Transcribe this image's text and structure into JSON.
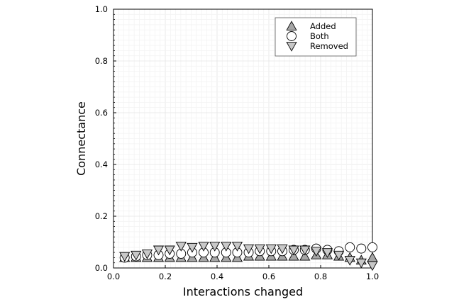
{
  "chart_data": {
    "type": "scatter",
    "xlabel": "Interactions changed",
    "ylabel": "Connectance",
    "xlim": [
      0.0,
      1.0
    ],
    "ylim": [
      0.0,
      1.0
    ],
    "xticks": [
      "0.0",
      "0.2",
      "0.4",
      "0.6",
      "0.8",
      "1.0"
    ],
    "yticks": [
      "0.0",
      "0.2",
      "0.4",
      "0.6",
      "0.8",
      "1.0"
    ],
    "grid": true,
    "legend_position": "top-right",
    "x": [
      0.043,
      0.087,
      0.13,
      0.174,
      0.217,
      0.261,
      0.304,
      0.348,
      0.391,
      0.435,
      0.478,
      0.522,
      0.565,
      0.609,
      0.652,
      0.696,
      0.739,
      0.783,
      0.826,
      0.87,
      0.913,
      0.957,
      1.0
    ],
    "series": [
      {
        "name": "Added",
        "marker": "triangle-up",
        "color": "#a6a6a6",
        "values": [
          0.04,
          0.04,
          0.04,
          0.04,
          0.04,
          0.04,
          0.04,
          0.04,
          0.04,
          0.04,
          0.04,
          0.045,
          0.045,
          0.045,
          0.045,
          0.045,
          0.045,
          0.05,
          0.05,
          0.045,
          0.04,
          0.03,
          0.04
        ]
      },
      {
        "name": "Both",
        "marker": "circle",
        "color": "#ffffff",
        "values": [
          0.04,
          0.045,
          0.05,
          0.05,
          0.055,
          0.055,
          0.06,
          0.06,
          0.06,
          0.06,
          0.06,
          0.06,
          0.065,
          0.065,
          0.065,
          0.07,
          0.07,
          0.075,
          0.07,
          0.065,
          0.08,
          0.075,
          0.08
        ]
      },
      {
        "name": "Removed",
        "marker": "triangle-down",
        "color": "#c8c8c8",
        "values": [
          0.045,
          0.05,
          0.055,
          0.07,
          0.07,
          0.085,
          0.08,
          0.085,
          0.085,
          0.085,
          0.085,
          0.075,
          0.075,
          0.075,
          0.075,
          0.07,
          0.07,
          0.065,
          0.06,
          0.05,
          0.03,
          0.02,
          0.01
        ]
      }
    ]
  }
}
